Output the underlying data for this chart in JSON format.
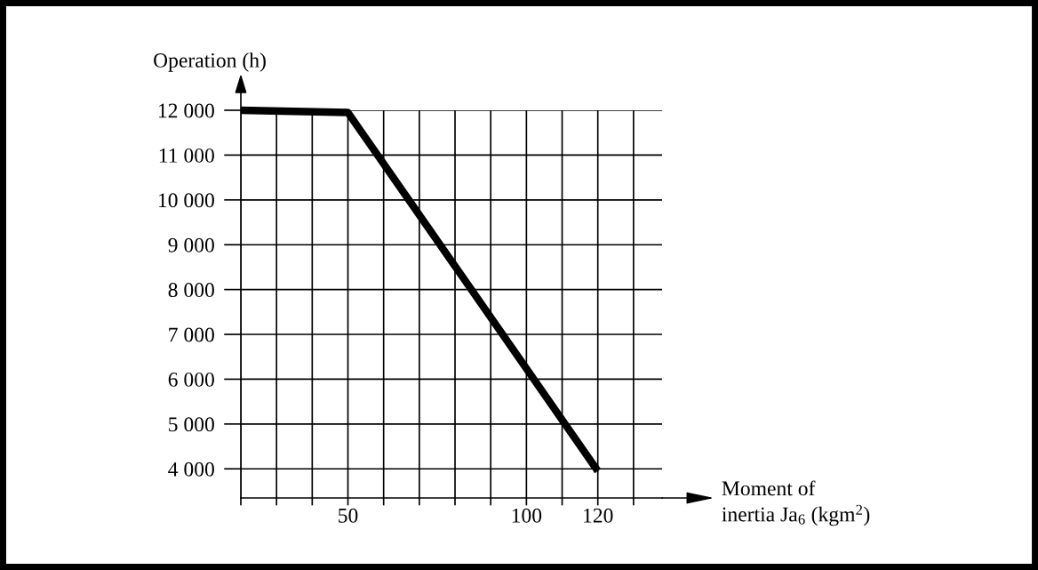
{
  "chart_data": {
    "type": "line",
    "xlabel": "Moment of\ninertia Ja$_{6}$ (kgm$^{2}$)",
    "ylabel": "Operation (h)",
    "x": [
      20,
      50,
      120
    ],
    "series": [
      {
        "color": "#000000",
        "values": [
          12000,
          11950,
          3950
        ]
      }
    ],
    "xlim": [
      20,
      138
    ],
    "ylim": [
      3350,
      12000
    ],
    "xticks": [
      {
        "value": 20,
        "label": null
      },
      {
        "value": 30,
        "label": null
      },
      {
        "value": 40,
        "label": null
      },
      50,
      {
        "value": 60,
        "label": null
      },
      {
        "value": 70,
        "label": null
      },
      {
        "value": 80,
        "label": null
      },
      {
        "value": 90,
        "label": null
      },
      100,
      {
        "value": 110,
        "label": null
      },
      120,
      {
        "value": 130,
        "label": null
      }
    ],
    "yticks": [
      {
        "value": 4000,
        "label": "4 000"
      },
      {
        "value": 5000,
        "label": "5 000"
      },
      {
        "value": 6000,
        "label": "6 000"
      },
      {
        "value": 7000,
        "label": "7 000"
      },
      {
        "value": 8000,
        "label": "8 000"
      },
      {
        "value": 9000,
        "label": "9 000"
      },
      {
        "value": 10000,
        "label": "10 000"
      },
      {
        "value": 11000,
        "label": "11 000"
      },
      {
        "value": 12000,
        "label": "12 000"
      }
    ],
    "grid": true,
    "line_style": "solid"
  }
}
